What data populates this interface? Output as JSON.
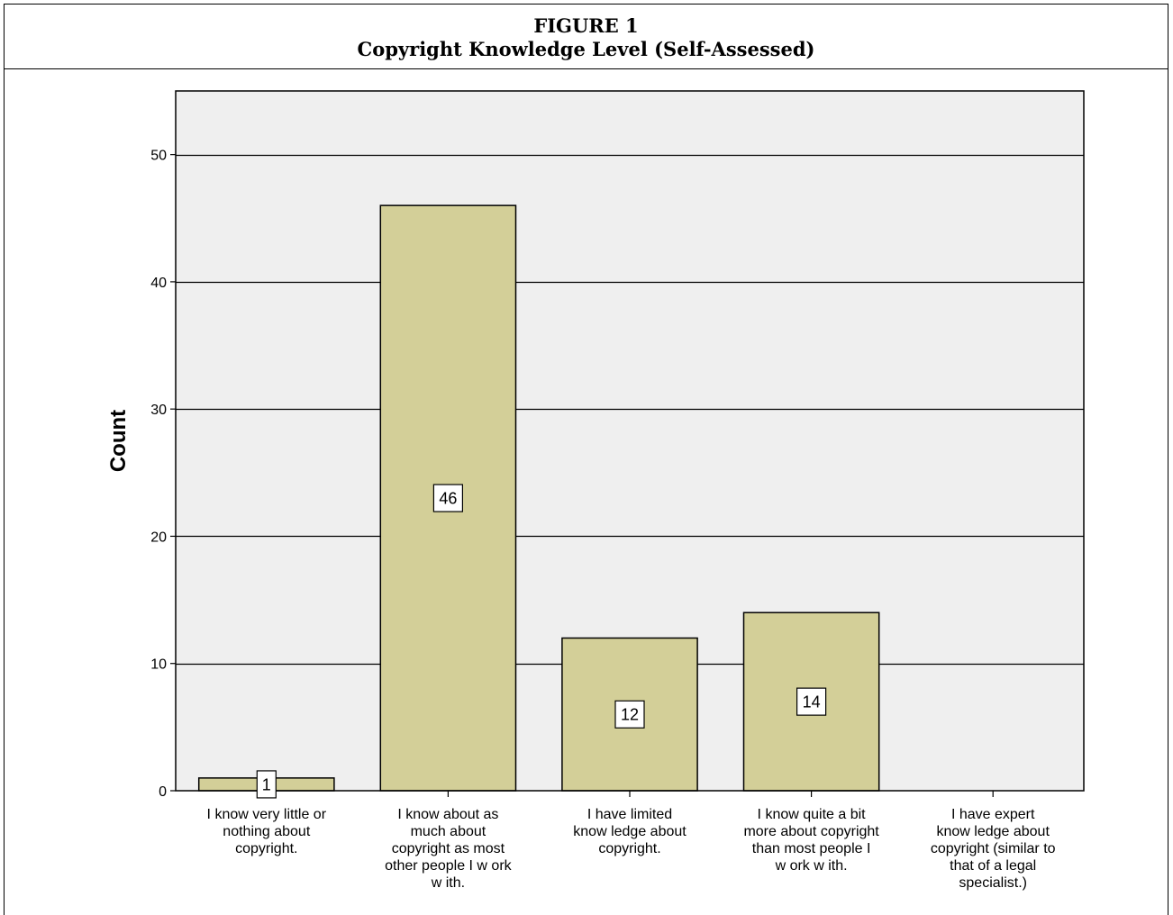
{
  "figure": {
    "label": "FIGURE 1",
    "title": "Copyright Knowledge Level (Self-Assessed)"
  },
  "chart_data": {
    "type": "bar",
    "title": "Copyright Knowledge Level (Self-Assessed)",
    "xlabel": "",
    "ylabel": "Count",
    "ylim": [
      0,
      55
    ],
    "yticks": [
      0,
      10,
      20,
      30,
      40,
      50
    ],
    "grid": true,
    "legend": "none",
    "colors": {
      "plot_bg": "#efefef",
      "bar_fill": "#d3cf98",
      "line": "#000000"
    },
    "categories": [
      [
        "I know  very little or",
        "nothing about",
        "copyright."
      ],
      [
        "I know  about as",
        "much about",
        "copyright as most",
        "other people I w ork",
        "w ith."
      ],
      [
        "I have limited",
        "know ledge about",
        "copyright."
      ],
      [
        "I know  quite a bit",
        "more about copyright",
        "than most people I",
        "w ork w ith."
      ],
      [
        "I have expert",
        "know ledge about",
        "copyright (similar to",
        "that of a legal",
        "specialist.)"
      ]
    ],
    "values": [
      1,
      46,
      12,
      14,
      0
    ],
    "data_labels": [
      "1",
      "46",
      "12",
      "14",
      ""
    ]
  }
}
